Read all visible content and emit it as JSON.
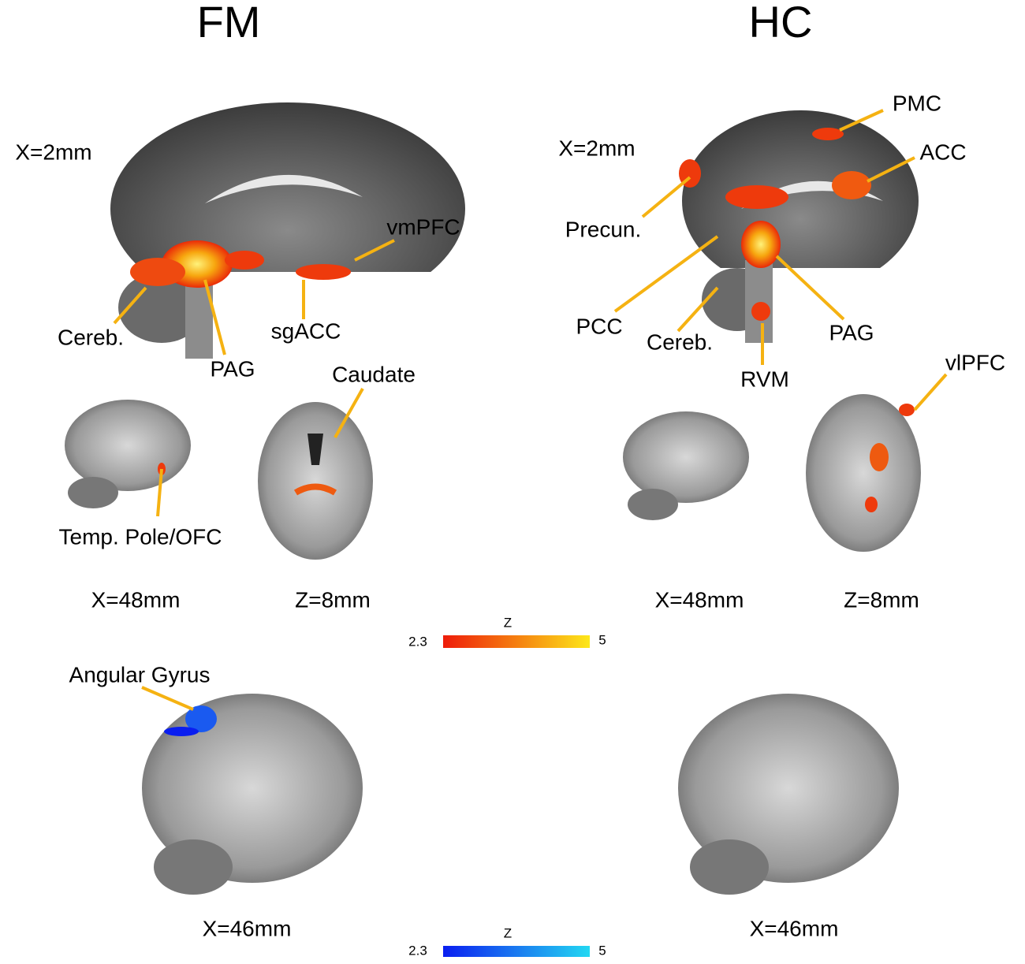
{
  "fm": {
    "title": "FM",
    "sagittal_mid": {
      "coord": "X=2mm",
      "labels": [
        "vmPFC",
        "Cereb.",
        "PAG",
        "sgACC"
      ]
    },
    "lateral": {
      "coord": "X=48mm",
      "labels": [
        "Temp. Pole/OFC"
      ]
    },
    "axial": {
      "coord": "Z=8mm",
      "labels": [
        "Caudate"
      ]
    },
    "lateral_neg": {
      "coord": "X=46mm",
      "labels": [
        "Angular Gyrus"
      ]
    }
  },
  "hc": {
    "title": "HC",
    "sagittal_mid": {
      "coord": "X=2mm",
      "labels": [
        "PMC",
        "ACC",
        "Precun.",
        "PCC",
        "Cereb.",
        "RVM",
        "PAG"
      ]
    },
    "lateral": {
      "coord": "X=48mm"
    },
    "axial": {
      "coord": "Z=8mm",
      "labels": [
        "vlPFC"
      ]
    },
    "lateral_neg": {
      "coord": "X=46mm"
    }
  },
  "colorbar_pos": {
    "label": "Z",
    "min": 2.3,
    "max": 5
  },
  "colorbar_neg": {
    "label": "Z",
    "min": 2.3,
    "max": 5
  }
}
